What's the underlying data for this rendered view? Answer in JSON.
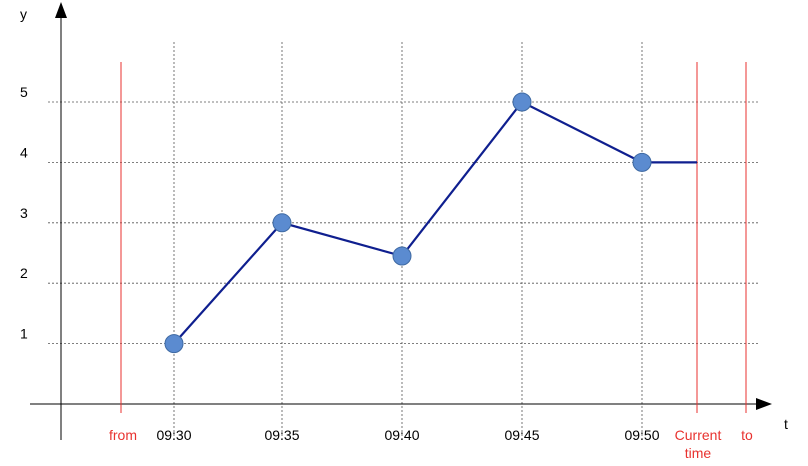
{
  "chart_data": {
    "type": "line",
    "x_axis_label": "t",
    "y_axis_label": "y",
    "x_ticks": [
      "09:30",
      "09:35",
      "09:40",
      "09:45",
      "09:50"
    ],
    "y_ticks": [
      "1",
      "2",
      "3",
      "4",
      "5"
    ],
    "grid": true,
    "series": [
      {
        "x": [
          "09:30",
          "09:35",
          "09:40",
          "09:45",
          "09:50"
        ],
        "values": [
          1.0,
          3.0,
          2.45,
          5.0,
          4.0
        ],
        "color": "#0f1f8f",
        "marker_color": "#5b8bd0",
        "extends_to": "Current time"
      }
    ],
    "markers": [
      {
        "label": "from",
        "position": "before 09:30",
        "color": "#e8322f"
      },
      {
        "label_line1": "Current",
        "label_line2": "time",
        "position": "after 09:50",
        "color": "#e8322f"
      },
      {
        "label": "to",
        "position": "after Current time",
        "color": "#e8322f"
      }
    ]
  }
}
